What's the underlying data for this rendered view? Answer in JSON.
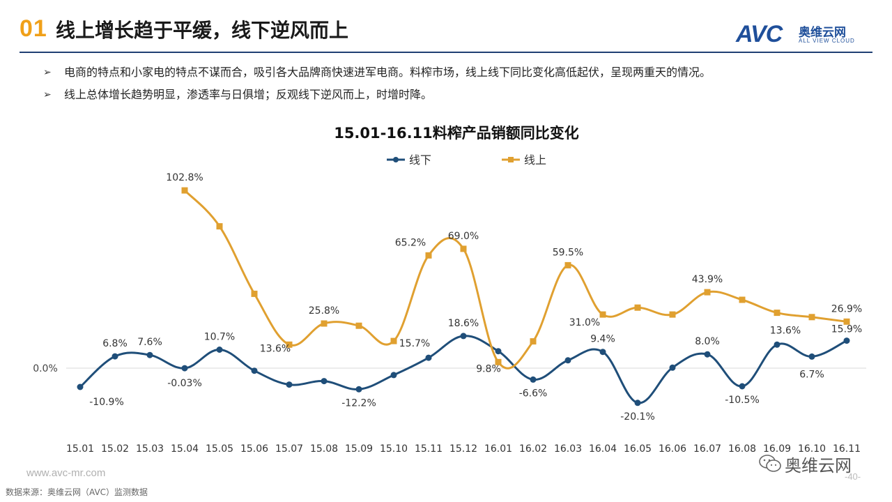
{
  "header": {
    "number": "01",
    "title": "线上增长趋于平缓，线下逆风而上",
    "logo_mark": "AVC",
    "logo_cn": "奥维云网",
    "logo_en": "ALL VIEW CLOUD"
  },
  "bullets": [
    "电商的特点和小家电的特点不谋而合，吸引各大品牌商快速进军电商。料榨市场，线上线下同比变化高低起伏，呈现两重天的情况。",
    "线上总体增长趋势明显，渗透率与日俱增；反观线下逆风而上，时增时降。"
  ],
  "chart_data": {
    "type": "line",
    "title": "15.01-16.11料榨产品销额同比变化",
    "categories": [
      "15.01",
      "15.02",
      "15.03",
      "15.04",
      "15.05",
      "15.06",
      "15.07",
      "15.08",
      "15.09",
      "15.10",
      "15.11",
      "15.12",
      "16.01",
      "16.02",
      "16.03",
      "16.04",
      "16.05",
      "16.06",
      "16.07",
      "16.08",
      "16.09",
      "16.10",
      "16.11"
    ],
    "series": [
      {
        "name": "线下",
        "color": "#1f4e79",
        "marker": "circle",
        "values": [
          -10.9,
          6.8,
          7.6,
          -0.03,
          10.7,
          -1.5,
          -9.5,
          -7.5,
          -12.2,
          -4.0,
          6.0,
          18.6,
          9.8,
          -6.6,
          4.5,
          9.4,
          -20.1,
          0.3,
          8.0,
          -10.5,
          13.6,
          6.7,
          15.9
        ],
        "labels": [
          "-10.9%",
          "6.8%",
          "7.6%",
          "-0.03%",
          "10.7%",
          "",
          "",
          "",
          "-12.2%",
          "",
          "",
          "18.6%",
          "9.8%",
          "-6.6%",
          "",
          "9.4%",
          "-20.1%",
          "",
          "8.0%",
          "-10.5%",
          "13.6%",
          "6.7%",
          "15.9%"
        ]
      },
      {
        "name": "线上",
        "color": "#e0a030",
        "marker": "square",
        "values": [
          null,
          null,
          null,
          102.8,
          82.0,
          43.0,
          13.6,
          25.8,
          24.5,
          15.7,
          65.2,
          69.0,
          3.5,
          15.5,
          59.5,
          31.0,
          35.0,
          31.0,
          43.9,
          39.5,
          32.0,
          29.5,
          26.9
        ],
        "labels": [
          "",
          "",
          "",
          "102.8%",
          "",
          "",
          "13.6%",
          "25.8%",
          "",
          "15.7%",
          "65.2%",
          "69.0%",
          "",
          "",
          "59.5%",
          "31.0%",
          "",
          "",
          "43.9%",
          "",
          "",
          "",
          "26.9%"
        ]
      }
    ],
    "zero_label": "0.0%",
    "grid": false,
    "legend_position": "top"
  },
  "footer": {
    "url": "www.avc-mr.com",
    "source": "数据来源：奥维云网（AVC）监测数据",
    "wechat": "奥维云网",
    "page": "-40-"
  }
}
